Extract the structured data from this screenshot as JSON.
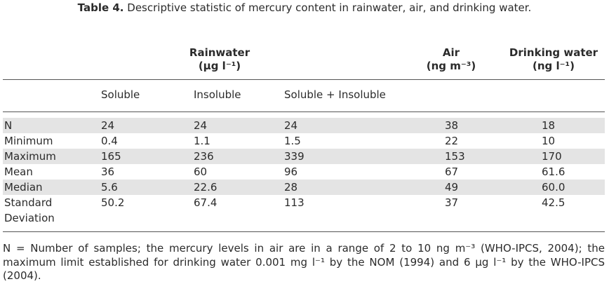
{
  "caption": {
    "label": "Table 4.",
    "text": "Descriptive statistic of mercury content in rainwater, air, and drinking water."
  },
  "headers": {
    "rainwater": {
      "name": "Rainwater",
      "unit": "(µg l⁻¹)"
    },
    "air": {
      "name": "Air",
      "unit": "(ng m⁻³)"
    },
    "drinking": {
      "name": "Drinking water",
      "unit": "(ng l⁻¹)"
    }
  },
  "subheaders": [
    "Soluble",
    "Insoluble",
    "Soluble + Insoluble"
  ],
  "rows": [
    {
      "label": "N",
      "label2": "",
      "values": [
        "24",
        "24",
        "24",
        "38",
        "18"
      ],
      "shaded": true
    },
    {
      "label": "Minimum",
      "label2": "",
      "values": [
        "0.4",
        "1.1",
        "1.5",
        "22",
        "10"
      ],
      "shaded": false
    },
    {
      "label": "Maximum",
      "label2": "",
      "values": [
        "165",
        "236",
        "339",
        "153",
        "170"
      ],
      "shaded": true
    },
    {
      "label": "Mean",
      "label2": "",
      "values": [
        "36",
        "60",
        "96",
        "67",
        "61.6"
      ],
      "shaded": false
    },
    {
      "label": "Median",
      "label2": "",
      "values": [
        "5.6",
        "22.6",
        "28",
        "49",
        "60.0"
      ],
      "shaded": true
    },
    {
      "label": "Standard",
      "label2": "Deviation",
      "values": [
        "50.2",
        "67.4",
        "113",
        "37",
        "42.5"
      ],
      "shaded": false
    }
  ],
  "footnote": "N = Number of samples; the mercury levels in air are in a range of 2 to 10 ng m⁻³ (WHO-IPCS, 2004); the maximum limit established for drinking water 0.001 mg l⁻¹ by the NOM (1994) and 6 µg l⁻¹ by the WHO-IPCS (2004)."
}
